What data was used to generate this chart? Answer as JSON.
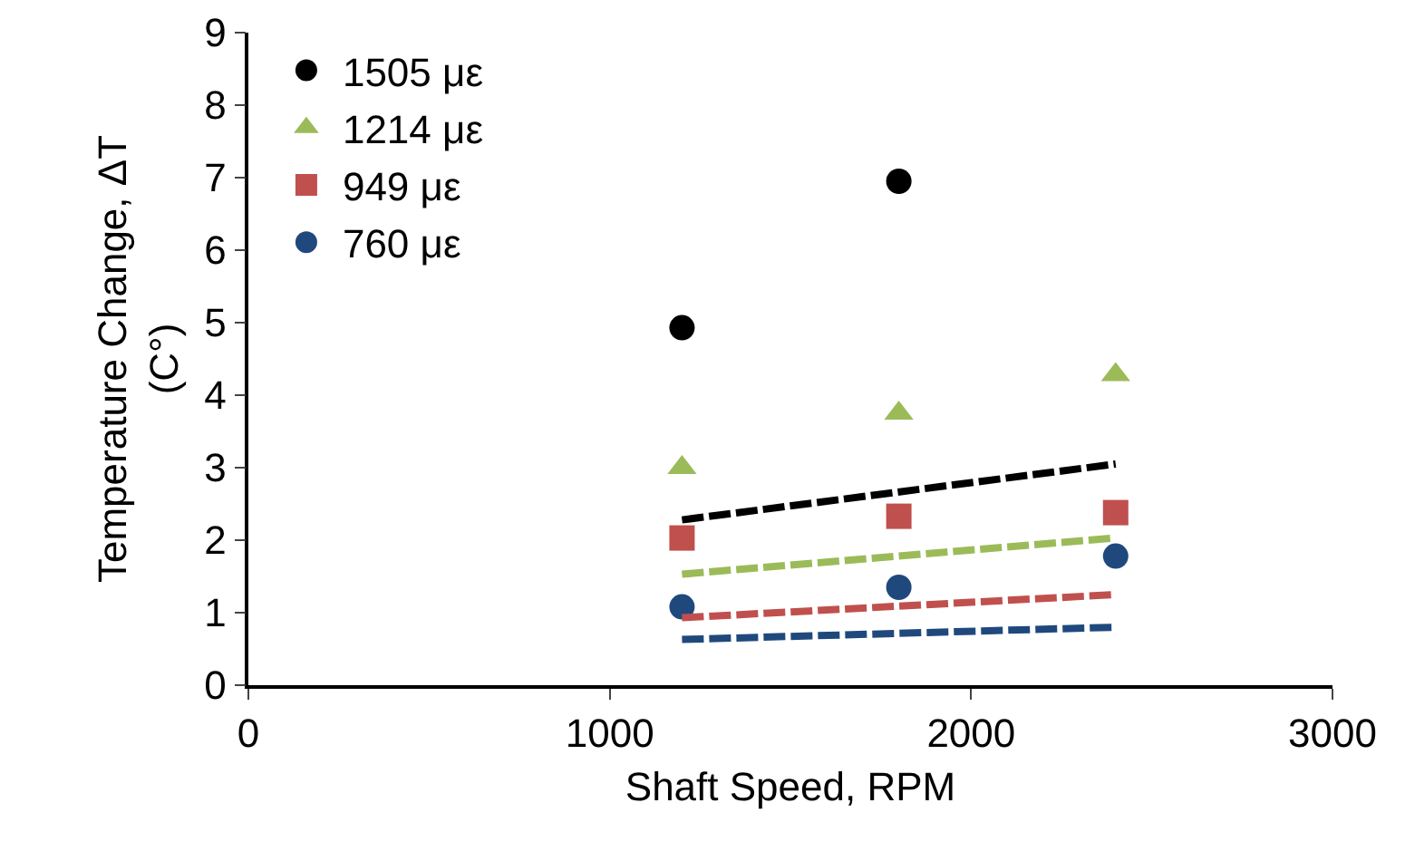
{
  "chart_data": {
    "type": "scatter",
    "xlabel": "Shaft Speed, RPM",
    "ylabel": "Temperature Change, ΔT\n(C°)",
    "xlim": [
      0,
      3000
    ],
    "xticks": [
      0,
      1000,
      2000,
      3000
    ],
    "ylim": [
      0,
      9
    ],
    "yticks": [
      0,
      1,
      2,
      3,
      4,
      5,
      6,
      7,
      8,
      9
    ],
    "grid": false,
    "legend": "top left",
    "series": [
      {
        "name": "1505 με",
        "color": "#000000",
        "marker": "circle",
        "x": [
          1200,
          1800
        ],
        "values": [
          4.93,
          6.95
        ]
      },
      {
        "name": "1214 με",
        "color": "#9bbb59",
        "marker": "triangle",
        "x": [
          1200,
          1800,
          2400
        ],
        "values": [
          3.0,
          3.75,
          4.28
        ]
      },
      {
        "name": "949 με",
        "color": "#c0504d",
        "marker": "square",
        "x": [
          1200,
          1800,
          2400
        ],
        "values": [
          2.03,
          2.33,
          2.38
        ]
      },
      {
        "name": "760 με",
        "color": "#1f497d",
        "marker": "circle",
        "x": [
          1200,
          1800,
          2400
        ],
        "values": [
          1.08,
          1.35,
          1.78
        ]
      },
      {
        "type": "line",
        "line_style": "dashed",
        "marker": "none",
        "color": "#000000",
        "x": [
          1200,
          2400
        ],
        "values": [
          2.28,
          3.05
        ]
      },
      {
        "type": "line",
        "line_style": "dashed",
        "marker": "none",
        "color": "#9bbb59",
        "x": [
          1200,
          2400
        ],
        "values": [
          1.53,
          2.03
        ]
      },
      {
        "type": "line",
        "line_style": "dashed",
        "marker": "none",
        "color": "#c0504d",
        "x": [
          1200,
          2400
        ],
        "values": [
          0.93,
          1.25
        ]
      },
      {
        "type": "line",
        "line_style": "dashed",
        "marker": "none",
        "color": "#1f497d",
        "x": [
          1200,
          2400
        ],
        "values": [
          0.63,
          0.8
        ]
      }
    ]
  }
}
